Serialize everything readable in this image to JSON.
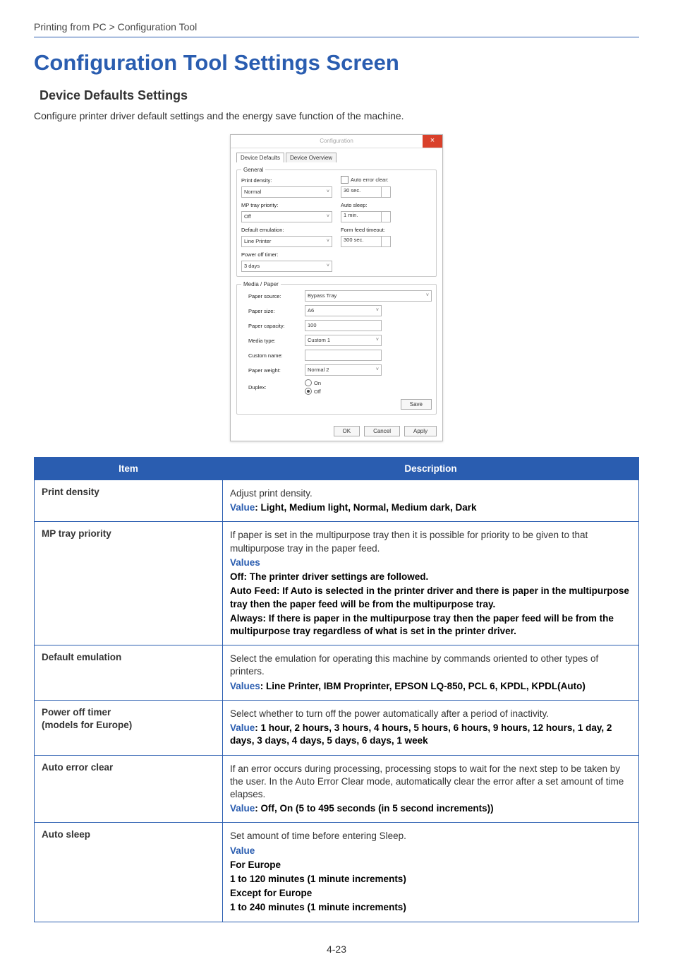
{
  "breadcrumb": "Printing from PC > Configuration Tool",
  "title": "Configuration Tool Settings Screen",
  "subtitle": "Device Defaults Settings",
  "intro": "Configure printer driver default settings and the energy save function of the machine.",
  "page_number": "4-23",
  "colors": {
    "accent": "#2a5db0",
    "close_btn": "#d9402a"
  },
  "screenshot": {
    "window_title": "Configuration",
    "close": "×",
    "tab_active": "Device Defaults",
    "tab_inactive": "Device Overview",
    "general_legend": "General",
    "left": {
      "print_density_label": "Print density:",
      "print_density_value": "Normal",
      "mp_label": "MP tray priority:",
      "mp_value": "Off",
      "emu_label": "Default emulation:",
      "emu_value": "Line Printer",
      "pot_label": "Power off timer:",
      "pot_value": "3 days"
    },
    "right": {
      "aec_label": "Auto error clear:",
      "aec_value": "30 sec.",
      "as_label": "Auto sleep:",
      "as_value": "1 min.",
      "fft_label": "Form feed timeout:",
      "fft_value": "300 sec."
    },
    "media_legend": "Media / Paper",
    "media": {
      "source_label": "Paper source:",
      "source_value": "Bypass Tray",
      "size_label": "Paper size:",
      "size_value": "A6",
      "cap_label": "Paper capacity:",
      "cap_value": "100",
      "type_label": "Media type:",
      "type_value": "Custom 1",
      "cname_label": "Custom name:",
      "cname_value": "",
      "weight_label": "Paper weight:",
      "weight_value": "Normal 2",
      "duplex_label": "Duplex:",
      "duplex_on": "On",
      "duplex_off": "Off"
    },
    "buttons": {
      "save": "Save",
      "ok": "OK",
      "cancel": "Cancel",
      "apply": "Apply"
    }
  },
  "table": {
    "headers": {
      "item": "Item",
      "desc": "Description"
    },
    "rows": [
      {
        "item": "Print density",
        "lines": [
          {
            "t": "plain",
            "v": "Adjust print density."
          },
          {
            "t": "value",
            "label": "Value",
            "v": ": Light, Medium light, Normal, Medium dark, Dark"
          }
        ]
      },
      {
        "item": "MP tray priority",
        "lines": [
          {
            "t": "plain",
            "v": "If paper is set in the multipurpose tray then it is possible for priority to be given to that multipurpose tray in the paper feed."
          },
          {
            "t": "vlabel_only",
            "label": "Values"
          },
          {
            "t": "bold",
            "v": "Off: The printer driver settings are followed."
          },
          {
            "t": "bold",
            "v": "Auto Feed: If Auto is selected in the printer driver and there is paper in the multipurpose tray then the paper feed will be from the multipurpose tray."
          },
          {
            "t": "bold",
            "v": "Always: If there is paper in the multipurpose tray then the paper feed will be from the multipurpose tray regardless of what is set in the printer driver."
          }
        ]
      },
      {
        "item": "Default emulation",
        "lines": [
          {
            "t": "plain",
            "v": "Select the emulation for operating this machine by commands oriented to other types of printers."
          },
          {
            "t": "value",
            "label": "Values",
            "v": ": Line Printer, IBM Proprinter, EPSON LQ-850, PCL 6, KPDL, KPDL(Auto)"
          }
        ]
      },
      {
        "item": "Power off timer\n(models for Europe)",
        "lines": [
          {
            "t": "plain",
            "v": "Select whether to turn off the power automatically after a period of inactivity."
          },
          {
            "t": "value",
            "label": "Value",
            "v": ": 1 hour, 2 hours, 3 hours, 4 hours, 5 hours, 6 hours, 9 hours, 12 hours, 1 day, 2 days, 3 days, 4 days, 5 days, 6 days, 1 week"
          }
        ]
      },
      {
        "item": "Auto error clear",
        "lines": [
          {
            "t": "plain",
            "v": "If an error occurs during processing, processing stops to wait for the next step to be taken by the user. In the Auto Error Clear mode, automatically clear the error after a set amount of time elapses."
          },
          {
            "t": "value",
            "label": "Value",
            "v": ": Off, On (5 to 495 seconds (in 5 second increments))"
          }
        ]
      },
      {
        "item": "Auto sleep",
        "lines": [
          {
            "t": "plain",
            "v": "Set amount of time before entering Sleep."
          },
          {
            "t": "vlabel_only",
            "label": "Value"
          },
          {
            "t": "bold",
            "v": "For Europe"
          },
          {
            "t": "bold",
            "v": "1 to 120 minutes (1 minute increments)"
          },
          {
            "t": "bold",
            "v": "Except for Europe"
          },
          {
            "t": "bold",
            "v": "1 to 240 minutes (1 minute increments)"
          }
        ]
      }
    ]
  }
}
